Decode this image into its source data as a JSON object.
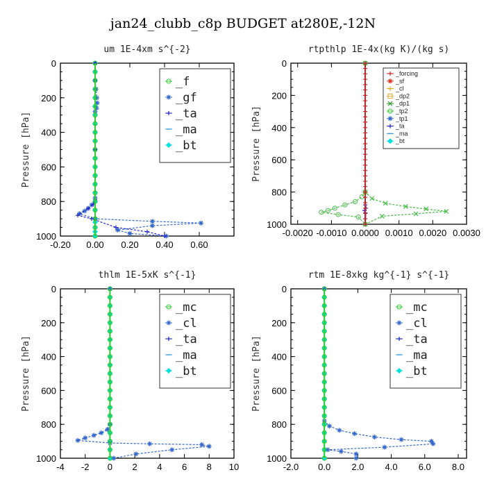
{
  "title": "jan24_clubb_c8p  BUDGET at280E,-12N",
  "chart_data": [
    {
      "type": "line",
      "title": "um  1E-4xm s^{-2}",
      "ylabel": "Pressure [hPa]",
      "xlim": [
        -0.2,
        0.8
      ],
      "ylim": [
        1000,
        0
      ],
      "xticks": [
        "-0.20",
        "0.00",
        "0.20",
        "0.40",
        "0.60"
      ],
      "xtick_values": [
        -0.2,
        0.0,
        0.2,
        0.4,
        0.6
      ],
      "yticks": [
        "0",
        "200",
        "400",
        "600",
        "800",
        "1000"
      ],
      "ytick_values": [
        0,
        200,
        400,
        600,
        800,
        1000
      ],
      "legend_style": "large",
      "legend": [
        {
          "label": "_f",
          "color": "#33cc33",
          "marker": "circle"
        },
        {
          "label": "_gf",
          "color": "#3366cc",
          "marker": "star"
        },
        {
          "label": "_ta",
          "color": "#2222cc",
          "marker": "plus"
        },
        {
          "label": "_ma",
          "color": "#3399dd",
          "marker": "dash"
        },
        {
          "label": "_bt",
          "color": "#00e0e0",
          "marker": "diamond"
        }
      ],
      "series": [
        {
          "name": "_bt",
          "color": "#00e0e0",
          "x": [
            0,
            0,
            0,
            0,
            0,
            0,
            0,
            0,
            0,
            0,
            0,
            0,
            0,
            0,
            0,
            0,
            0,
            0,
            0,
            0,
            0,
            0,
            0
          ],
          "y": [
            0,
            50,
            100,
            150,
            200,
            250,
            300,
            350,
            400,
            450,
            500,
            550,
            600,
            650,
            700,
            750,
            800,
            850,
            900,
            920,
            950,
            975,
            1000
          ]
        },
        {
          "name": "_gf",
          "color": "#3366cc",
          "dashed": true,
          "x": [
            0,
            0,
            0.005,
            0.01,
            0.012,
            0.008,
            0,
            0,
            0,
            -0.02,
            -0.04,
            -0.06,
            -0.09,
            0.0,
            0.33,
            0.61,
            0.33,
            0.13,
            0.2,
            0.41
          ],
          "y": [
            0,
            100,
            150,
            200,
            230,
            260,
            280,
            500,
            780,
            820,
            840,
            855,
            870,
            900,
            915,
            925,
            940,
            965,
            985,
            1000
          ]
        },
        {
          "name": "_ta",
          "color": "#2222cc",
          "dashed": true,
          "x": [
            0,
            0,
            0,
            -0.01,
            -0.04,
            -0.1,
            -0.02,
            0.12,
            0.3,
            0.4
          ],
          "y": [
            0,
            500,
            790,
            815,
            840,
            880,
            900,
            950,
            975,
            1000
          ]
        },
        {
          "name": "_f",
          "color": "#33cc33",
          "x": [
            0,
            0,
            0,
            0,
            0,
            0,
            0,
            0,
            0,
            0,
            0,
            0,
            0,
            0,
            0,
            0,
            0,
            0,
            0,
            0,
            0
          ],
          "y": [
            0,
            50,
            100,
            150,
            200,
            250,
            300,
            350,
            400,
            450,
            500,
            550,
            600,
            650,
            700,
            750,
            800,
            850,
            900,
            950,
            1000
          ]
        }
      ]
    },
    {
      "type": "line",
      "title": "rtpthlp  1E-4x(kg K)/(kg s)",
      "ylabel": "Pressure [hPa]",
      "xlim": [
        -0.0022,
        0.003
      ],
      "ylim": [
        1000,
        0
      ],
      "xticks": [
        "-0.0020",
        "-0.0010",
        "0.0000",
        "0.0010",
        "0.0020",
        "0.0030"
      ],
      "xtick_values": [
        -0.002,
        -0.001,
        0.0,
        0.001,
        0.002,
        0.003
      ],
      "yticks": [
        "0",
        "200",
        "400",
        "600",
        "800",
        "1000"
      ],
      "ytick_values": [
        0,
        200,
        400,
        600,
        800,
        1000
      ],
      "legend_style": "small",
      "legend": [
        {
          "label": "_forcing",
          "color": "#cc2222",
          "marker": "plus"
        },
        {
          "label": "_sf",
          "color": "#dd3322",
          "marker": "star"
        },
        {
          "label": "_cl",
          "color": "#ddaa00",
          "marker": "plus"
        },
        {
          "label": "_dp2",
          "color": "#ddaa33",
          "marker": "square"
        },
        {
          "label": "_dp1",
          "color": "#339933",
          "marker": "x"
        },
        {
          "label": "_tp2",
          "color": "#33cc33",
          "marker": "circle"
        },
        {
          "label": "_tp1",
          "color": "#3366cc",
          "marker": "star"
        },
        {
          "label": "_ta",
          "color": "#2222cc",
          "marker": "plus"
        },
        {
          "label": "_ma",
          "color": "#3399dd",
          "marker": "dash"
        },
        {
          "label": "_bt",
          "color": "#00e0e0",
          "marker": "diamond"
        }
      ],
      "series": [
        {
          "name": "_tp2",
          "color": "#44bb44",
          "dashed": true,
          "x": [
            0,
            0,
            -0.0001,
            -0.0003,
            -0.0006,
            -0.0009,
            -0.0011,
            -0.0013,
            -0.0008,
            -0.0002,
            0
          ],
          "y": [
            0,
            800,
            830,
            860,
            880,
            900,
            915,
            925,
            940,
            955,
            1000
          ]
        },
        {
          "name": "_dp1",
          "color": "#44bb44",
          "dashed": true,
          "x": [
            0,
            0,
            0.0002,
            0.0006,
            0.0012,
            0.0018,
            0.0024,
            0.0015,
            0.0005,
            0
          ],
          "y": [
            0,
            800,
            840,
            870,
            890,
            905,
            920,
            935,
            950,
            1000
          ]
        },
        {
          "name": "_ta",
          "color": "#2222cc",
          "x": [
            0,
            0,
            2e-05,
            -2e-05,
            1e-05,
            0
          ],
          "y": [
            0,
            880,
            900,
            915,
            930,
            1000
          ]
        },
        {
          "name": "_forcing",
          "color": "#cc2222",
          "x": [
            0,
            0,
            0,
            0,
            0,
            0,
            0,
            0,
            0,
            0,
            0,
            0,
            0,
            0,
            0,
            0,
            0,
            0,
            0,
            0,
            0,
            0,
            0,
            0,
            0,
            0,
            0,
            0,
            0,
            0,
            0
          ],
          "y": [
            0,
            33,
            66,
            100,
            133,
            166,
            200,
            233,
            266,
            300,
            333,
            366,
            400,
            433,
            466,
            500,
            533,
            566,
            600,
            633,
            666,
            700,
            733,
            766,
            800,
            833,
            866,
            900,
            933,
            966,
            1000
          ]
        }
      ]
    },
    {
      "type": "line",
      "title": "thlm  1E-5xK s^{-1}",
      "ylabel": "Pressure [hPa]",
      "xlim": [
        -4,
        10
      ],
      "ylim": [
        1000,
        0
      ],
      "xticks": [
        "-4",
        "-2",
        "0",
        "2",
        "4",
        "6",
        "8",
        "10"
      ],
      "xtick_values": [
        -4,
        -2,
        0,
        2,
        4,
        6,
        8,
        10
      ],
      "yticks": [
        "0",
        "200",
        "400",
        "600",
        "800",
        "1000"
      ],
      "ytick_values": [
        0,
        200,
        400,
        600,
        800,
        1000
      ],
      "legend_style": "large",
      "legend": [
        {
          "label": "_mc",
          "color": "#33cc33",
          "marker": "circle"
        },
        {
          "label": "_cl",
          "color": "#3366cc",
          "marker": "star"
        },
        {
          "label": "_ta",
          "color": "#2222cc",
          "marker": "plus"
        },
        {
          "label": "_ma",
          "color": "#3399dd",
          "marker": "dash"
        },
        {
          "label": "_bt",
          "color": "#00e0e0",
          "marker": "diamond"
        }
      ],
      "series": [
        {
          "name": "_bt",
          "color": "#00e0e0",
          "x": [
            0,
            0,
            0,
            0,
            0,
            0,
            0,
            0,
            0,
            0,
            0,
            0,
            0,
            0,
            0,
            0,
            0,
            0,
            0,
            0,
            0
          ],
          "y": [
            0,
            50,
            100,
            150,
            200,
            250,
            300,
            350,
            400,
            450,
            500,
            550,
            600,
            650,
            700,
            750,
            800,
            850,
            900,
            950,
            1000
          ]
        },
        {
          "name": "_cl",
          "color": "#3366cc",
          "dashed": true,
          "x": [
            0,
            0,
            -0.2,
            -0.7,
            -1.3,
            -2.0,
            -2.6,
            0,
            3.2,
            7.4,
            8.0,
            5.0,
            2.1,
            0.3
          ],
          "y": [
            0,
            800,
            830,
            850,
            865,
            880,
            895,
            910,
            915,
            920,
            930,
            950,
            975,
            1000
          ]
        },
        {
          "name": "_mc",
          "color": "#33cc33",
          "x": [
            0,
            0,
            0,
            0,
            0,
            0,
            0,
            0,
            0,
            0,
            0,
            0,
            0,
            0,
            0,
            0,
            0,
            0,
            0,
            0,
            0
          ],
          "y": [
            0,
            50,
            100,
            150,
            200,
            250,
            300,
            350,
            400,
            450,
            500,
            550,
            600,
            650,
            700,
            750,
            800,
            850,
            900,
            950,
            1000
          ]
        }
      ]
    },
    {
      "type": "line",
      "title": "rtm  1E-8xkg kg^{-1} s^{-1}",
      "ylabel": "Pressure [hPa]",
      "xlim": [
        -2.0,
        8.5
      ],
      "ylim": [
        1000,
        0
      ],
      "xticks": [
        "-2.0",
        "0.0",
        "2.0",
        "4.0",
        "6.0",
        "8.0"
      ],
      "xtick_values": [
        -2,
        0,
        2,
        4,
        6,
        8
      ],
      "yticks": [
        "0",
        "200",
        "400",
        "600",
        "800",
        "1000"
      ],
      "ytick_values": [
        0,
        200,
        400,
        600,
        800,
        1000
      ],
      "legend_style": "large",
      "legend": [
        {
          "label": "_mc",
          "color": "#33cc33",
          "marker": "circle"
        },
        {
          "label": "_cl",
          "color": "#3366cc",
          "marker": "star"
        },
        {
          "label": "_ta",
          "color": "#2222cc",
          "marker": "plus"
        },
        {
          "label": "_ma",
          "color": "#3399dd",
          "marker": "dash"
        },
        {
          "label": "_bt",
          "color": "#00e0e0",
          "marker": "diamond"
        }
      ],
      "series": [
        {
          "name": "_bt",
          "color": "#00e0e0",
          "x": [
            0,
            0,
            0,
            0,
            0,
            0,
            0,
            0,
            0,
            0,
            0,
            0,
            0,
            0,
            0,
            0,
            0,
            0,
            0,
            0,
            0
          ],
          "y": [
            0,
            50,
            100,
            150,
            200,
            250,
            300,
            350,
            400,
            450,
            500,
            550,
            600,
            650,
            700,
            750,
            800,
            850,
            900,
            950,
            1000
          ]
        },
        {
          "name": "_cl",
          "color": "#3366cc",
          "dashed": true,
          "x": [
            0,
            0,
            0.3,
            0.9,
            1.8,
            3.0,
            4.6,
            6.4,
            6.5,
            3.6,
            0.2,
            1.0,
            1.9,
            1.9
          ],
          "y": [
            0,
            780,
            810,
            835,
            855,
            875,
            890,
            900,
            915,
            935,
            950,
            960,
            975,
            1000
          ]
        },
        {
          "name": "_mc",
          "color": "#33cc33",
          "x": [
            0,
            0,
            0,
            0,
            0,
            0,
            0,
            0,
            0,
            0,
            0,
            0,
            0,
            0,
            0,
            0,
            0,
            0,
            0,
            0,
            0
          ],
          "y": [
            0,
            50,
            100,
            150,
            200,
            250,
            300,
            350,
            400,
            450,
            500,
            550,
            600,
            650,
            700,
            750,
            800,
            850,
            900,
            950,
            1000
          ]
        }
      ]
    }
  ]
}
